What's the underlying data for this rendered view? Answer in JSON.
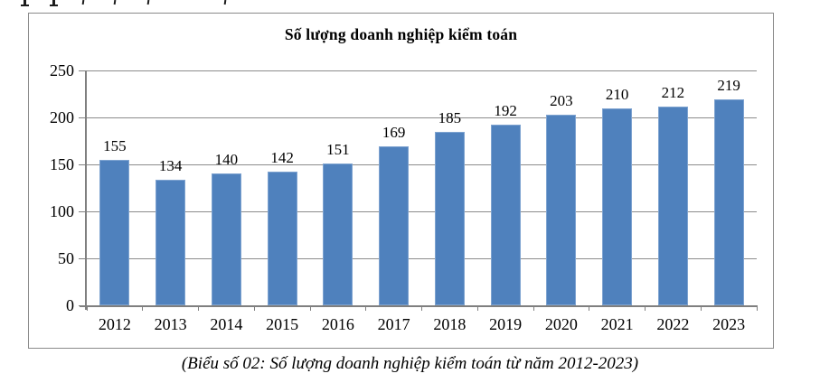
{
  "chart": {
    "title": "Số lượng doanh nghiệp kiểm toán",
    "caption": "(Biểu số 02: Số lượng doanh nghiệp kiểm toán từ năm 2012-2023)"
  },
  "chart_data": {
    "type": "bar",
    "title": "Số lượng doanh nghiệp kiểm toán",
    "categories": [
      "2012",
      "2013",
      "2014",
      "2015",
      "2016",
      "2017",
      "2018",
      "2019",
      "2020",
      "2021",
      "2022",
      "2023"
    ],
    "values": [
      155,
      134,
      140,
      142,
      151,
      169,
      185,
      192,
      203,
      210,
      212,
      219
    ],
    "data_labels": [
      155,
      134,
      140,
      142,
      151,
      169,
      185,
      192,
      203,
      210,
      212,
      219
    ],
    "xlabel": "",
    "ylabel": "",
    "ylim": [
      0,
      250
    ],
    "yticks": [
      0,
      50,
      100,
      150,
      200,
      250
    ],
    "grid": "horizontal",
    "legend": "none",
    "caption": "(Biểu số 02: Số lượng doanh nghiệp kiểm toán từ năm 2012-2023)",
    "colors": {
      "bar_fill": "#4F81BD",
      "bar_border": "#7EA3D0",
      "gridline": "#8c8c8c",
      "axis": "#7f7f7f",
      "text": "#000000"
    }
  }
}
